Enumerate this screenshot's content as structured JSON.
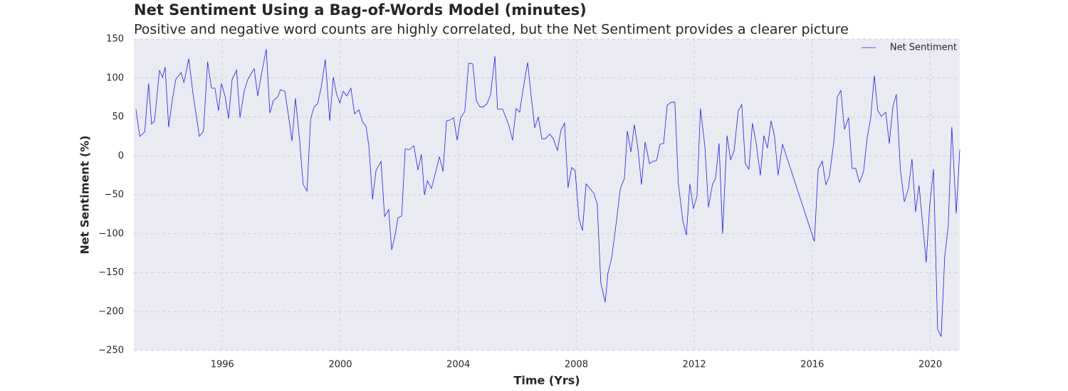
{
  "chart_data": {
    "type": "line",
    "title": "Net Sentiment Using a Bag-of-Words Model (minutes)",
    "subtitle": "Positive and negative word counts are highly correlated, but the Net Sentiment provides a clearer picture",
    "x_label": "Time (Yrs)",
    "y_label": "Net Sentiment (%)",
    "xlim": [
      1993,
      2021
    ],
    "ylim": [
      -250,
      150
    ],
    "xticks": [
      1996,
      2000,
      2004,
      2008,
      2012,
      2016,
      2020
    ],
    "yticks": [
      {
        "value": -250,
        "label": "−250"
      },
      {
        "value": -200,
        "label": "−200"
      },
      {
        "value": -150,
        "label": "−150"
      },
      {
        "value": -100,
        "label": "−100"
      },
      {
        "value": -50,
        "label": "−50"
      },
      0,
      50,
      100,
      150
    ],
    "grid": true,
    "legend": "upper right",
    "x": [
      1993.07,
      1993.2,
      1993.37,
      1993.5,
      1993.6,
      1993.7,
      1993.87,
      1993.97,
      1994.06,
      1994.18,
      1994.3,
      1994.42,
      1994.6,
      1994.7,
      1994.86,
      1995.0,
      1995.22,
      1995.36,
      1995.5,
      1995.63,
      1995.75,
      1995.87,
      1995.97,
      1996.09,
      1996.21,
      1996.33,
      1996.48,
      1996.6,
      1996.74,
      1996.86,
      1997.08,
      1997.2,
      1997.34,
      1997.49,
      1997.61,
      1997.73,
      1997.88,
      1997.97,
      1998.12,
      1998.24,
      1998.36,
      1998.48,
      1998.62,
      1998.74,
      1998.87,
      1998.99,
      1999.11,
      1999.23,
      1999.35,
      1999.49,
      1999.64,
      1999.76,
      1999.87,
      1999.98,
      2000.1,
      2000.22,
      2000.36,
      2000.48,
      2000.63,
      2000.75,
      2000.87,
      2000.97,
      2001.09,
      2001.21,
      2001.38,
      2001.5,
      2001.64,
      2001.74,
      2001.86,
      2001.95,
      2002.08,
      2002.2,
      2002.34,
      2002.49,
      2002.63,
      2002.75,
      2002.85,
      2002.95,
      2003.09,
      2003.36,
      2003.48,
      2003.6,
      2003.72,
      2003.84,
      2003.96,
      2004.08,
      2004.22,
      2004.35,
      2004.49,
      2004.61,
      2004.73,
      2004.85,
      2004.97,
      2005.09,
      2005.24,
      2005.33,
      2005.5,
      2005.62,
      2005.72,
      2005.84,
      2005.96,
      2006.08,
      2006.2,
      2006.35,
      2006.47,
      2006.59,
      2006.71,
      2006.83,
      2006.95,
      2007.1,
      2007.22,
      2007.36,
      2007.48,
      2007.6,
      2007.72,
      2007.84,
      2007.96,
      2008.09,
      2008.21,
      2008.33,
      2008.59,
      2008.71,
      2008.83,
      2008.98,
      2009.07,
      2009.2,
      2009.36,
      2009.49,
      2009.63,
      2009.73,
      2009.85,
      2009.97,
      2010.09,
      2010.21,
      2010.33,
      2010.48,
      2010.6,
      2010.72,
      2010.84,
      2010.96,
      2011.08,
      2011.22,
      2011.34,
      2011.46,
      2011.61,
      2011.73,
      2011.85,
      2011.97,
      2012.09,
      2012.21,
      2012.36,
      2012.48,
      2012.62,
      2012.72,
      2012.84,
      2012.96,
      2013.11,
      2013.23,
      2013.35,
      2013.49,
      2013.61,
      2013.73,
      2013.85,
      2013.97,
      2014.1,
      2014.24,
      2014.36,
      2014.48,
      2014.6,
      2014.72,
      2014.84,
      2014.99,
      2016.07,
      2016.2,
      2016.34,
      2016.46,
      2016.58,
      2016.73,
      2016.85,
      2016.97,
      2017.09,
      2017.23,
      2017.35,
      2017.47,
      2017.6,
      2017.74,
      2017.86,
      2017.98,
      2018.1,
      2018.22,
      2018.34,
      2018.49,
      2018.61,
      2018.73,
      2018.85,
      2018.99,
      2019.12,
      2019.26,
      2019.38,
      2019.5,
      2019.62,
      2019.74,
      2019.86,
      2019.98,
      2020.11,
      2020.25,
      2020.37,
      2020.49,
      2020.61,
      2020.73,
      2020.88,
      2021.0
    ],
    "series": [
      {
        "name": "Net Sentiment",
        "color": "#1f1fe0",
        "values": [
          60,
          25,
          31,
          93,
          41,
          45,
          110,
          101,
          114,
          37,
          71,
          98,
          107,
          94,
          125,
          81,
          25,
          32,
          121,
          87,
          87,
          58,
          93,
          77,
          48,
          98,
          110,
          49,
          83,
          98,
          112,
          77,
          108,
          137,
          55,
          71,
          76,
          85,
          83,
          52,
          19,
          74,
          20,
          -37,
          -45,
          47,
          63,
          67,
          88,
          124,
          45,
          101,
          80,
          68,
          83,
          77,
          87,
          54,
          59,
          44,
          38,
          12,
          -56,
          -19,
          -7,
          -78,
          -69,
          -121,
          -101,
          -80,
          -77,
          9,
          8,
          13,
          -18,
          2,
          -50,
          -32,
          -42,
          -1,
          -20,
          45,
          46,
          49,
          20,
          49,
          57,
          119,
          118,
          71,
          63,
          63,
          67,
          78,
          128,
          60,
          60,
          49,
          38,
          20,
          61,
          56,
          87,
          120,
          77,
          36,
          50,
          22,
          22,
          28,
          22,
          7,
          33,
          42,
          -41,
          -15,
          -19,
          -81,
          -96,
          -36,
          -48,
          -62,
          -163,
          -188,
          -151,
          -131,
          -84,
          -42,
          -29,
          32,
          5,
          40,
          9,
          -37,
          18,
          -10,
          -7,
          -6,
          15,
          16,
          65,
          69,
          69,
          -36,
          -83,
          -102,
          -36,
          -68,
          -52,
          61,
          11,
          -66,
          -36,
          -29,
          16,
          -100,
          26,
          -5,
          7,
          58,
          66,
          -10,
          -17,
          42,
          16,
          -25,
          26,
          10,
          45,
          25,
          -25,
          15,
          -110,
          -17,
          -7,
          -37,
          -26,
          18,
          76,
          84,
          34,
          49,
          -16,
          -16,
          -34,
          -20,
          23,
          49,
          103,
          58,
          51,
          56,
          16,
          63,
          79,
          -19,
          -59,
          -42,
          -4,
          -72,
          -38,
          -87,
          -137,
          -65,
          -17,
          -223,
          -232,
          -129,
          -90,
          37,
          -74,
          8
        ]
      }
    ]
  }
}
